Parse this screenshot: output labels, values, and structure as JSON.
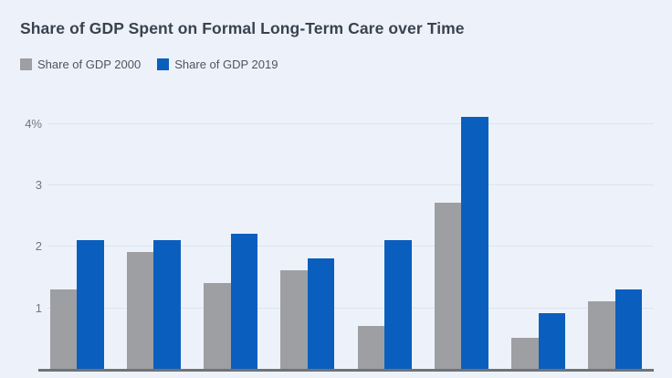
{
  "title": "Share of GDP Spent on Formal Long-Term Care over Time",
  "colors": {
    "background": "#edf2fa",
    "series_2000": "#9d9fa2",
    "series_2019": "#0a5fbe",
    "gridline": "#dde4ee",
    "axis_line": "#6f7276",
    "title_text": "#39434f",
    "legend_text": "#4b5563",
    "tick_text": "#6e7787"
  },
  "chart_data": {
    "type": "bar",
    "grouped": true,
    "categories": [
      "",
      "",
      "",
      "",
      "",
      "",
      "",
      ""
    ],
    "x_tick_labels_visible": false,
    "series": [
      {
        "name": "Share of GDP 2000",
        "color": "#9d9fa2",
        "values": [
          1.3,
          1.9,
          1.4,
          1.6,
          0.7,
          2.7,
          0.5,
          1.1
        ]
      },
      {
        "name": "Share of GDP 2019",
        "color": "#0a5fbe",
        "values": [
          2.1,
          2.1,
          2.2,
          1.8,
          2.1,
          4.1,
          0.9,
          1.3
        ]
      }
    ],
    "title": "Share of GDP Spent on Formal Long-Term Care over Time",
    "xlabel": "",
    "ylabel": "",
    "y_ticks": [
      {
        "value": 4,
        "label": "4%"
      },
      {
        "value": 3,
        "label": "3"
      },
      {
        "value": 2,
        "label": "2"
      },
      {
        "value": 1,
        "label": "1"
      }
    ],
    "ylim": [
      0,
      4.22
    ],
    "grid": true,
    "legend_position": "top-left"
  }
}
